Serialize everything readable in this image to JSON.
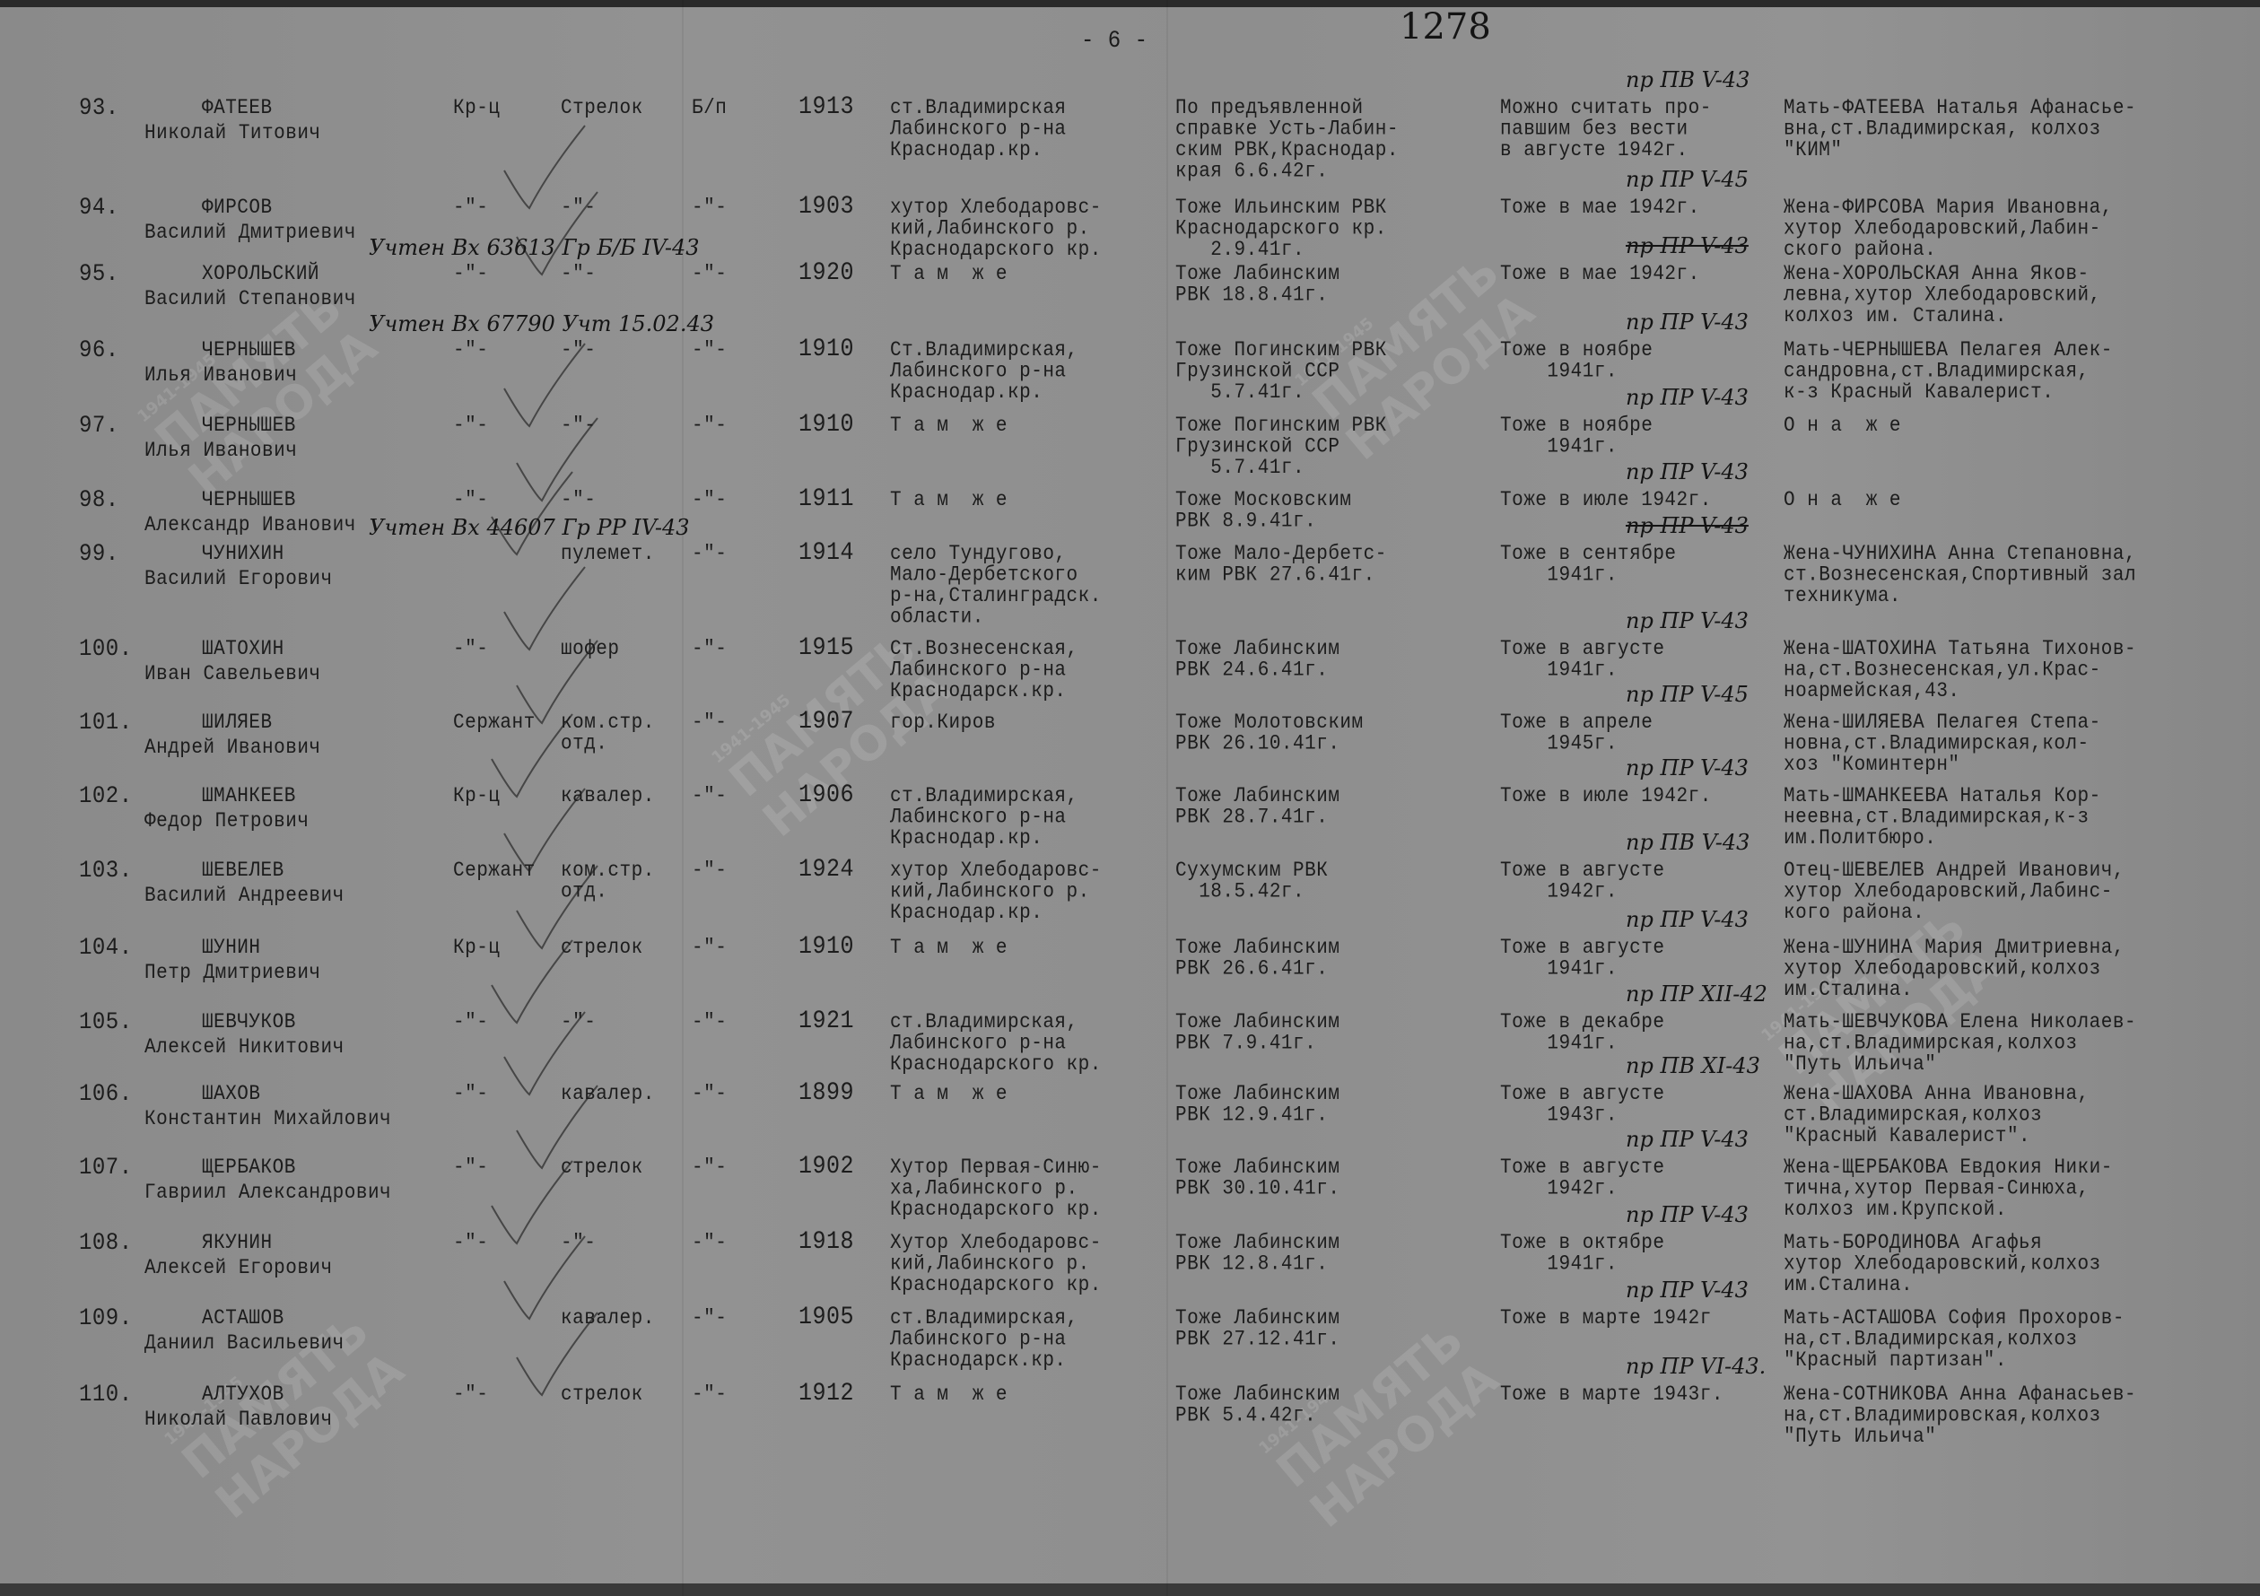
{
  "page_number": "- 6 -",
  "archive_number": "1278",
  "watermark": {
    "text": "ПАМЯТЬ\nНАРОДА",
    "years": "1941-1945"
  },
  "rows": [
    {
      "num": "93.",
      "surname": "ФАТЕЕВ",
      "name": "Николай Титович",
      "rank": "Кр-ц",
      "position": "Стрелок",
      "party": "Б/п",
      "year": "1913",
      "birthplace": "ст.Владимирская\nЛабинского р-на\nКраснодар.кр.",
      "drafted": "По предъявленной\nсправке Усть-Лабин-\nским РВК,Краснодар.\nкрая 6.6.42г.",
      "fate_note": "пр ПВ V-43",
      "fate": "Можно считать про-\nпавшим без вести\nв августе 1942г.",
      "relative": "Мать-ФАТЕЕВА Наталья Афанасье-\nвна,ст.Владимирская, колхоз\n\"КИМ\"",
      "margin_note": ""
    },
    {
      "num": "94.",
      "surname": "ФИРСОВ",
      "name": "Василий Дмитриевич",
      "rank": "-\"-",
      "position": "-\"-",
      "party": "-\"-",
      "year": "1903",
      "birthplace": "хутор Хлебодаровс-\nкий,Лабинского р.\nКраснодарского кр.",
      "drafted": "Тоже Ильинским РВК\nКраснодарского кр.\n   2.9.41г.",
      "fate_note": "пр ПР V-45",
      "fate": "Тоже в мае 1942г.",
      "relative": "Жена-ФИРСОВА Мария Ивановна,\nхутор Хлебодаровский,Лабин-\nского района.",
      "margin_note": ""
    },
    {
      "num": "95.",
      "surname": "ХОРОЛЬСКИЙ",
      "name": "Василий Степанович",
      "rank": "-\"-",
      "position": "-\"-",
      "party": "-\"-",
      "year": "1920",
      "birthplace": "Т а м  ж е",
      "drafted": "Тоже Лабинским\nРВК 18.8.41г.",
      "fate_note": "пр ПР V-43",
      "fate": "Тоже в мае 1942г.",
      "relative": "Жена-ХОРОЛЬСКАЯ Анна Яков-\nлевна,хутор Хлебодаровский,\nколхоз им. Сталина.",
      "margin_note": "Учтен Вх 63613 Гр Б/Б IV-43"
    },
    {
      "num": "96.",
      "surname": "ЧЕРНЫШЕВ",
      "name": "Илья Иванович",
      "rank": "-\"-",
      "position": "-\"-",
      "party": "-\"-",
      "year": "1910",
      "birthplace": "Ст.Владимирская,\nЛабинского р-на\nКраснодар.кр.",
      "drafted": "Тоже Погинским РВК\nГрузинской ССР\n   5.7.41г.",
      "fate_note": "пр ПР V-43",
      "fate": "Тоже в ноябре\n    1941г.",
      "relative": "Мать-ЧЕРНЫШЕВА Пелагея Алек-\nсандровна,ст.Владимирская,\nк-з Красный Кавалерист.",
      "margin_note": "Учтен Вх 67790 Учт 15.02.43"
    },
    {
      "num": "97.",
      "surname": "ЧЕРНЫШЕВ",
      "name": "Илья Иванович",
      "rank": "-\"-",
      "position": "-\"-",
      "party": "-\"-",
      "year": "1910",
      "birthplace": "Т а м  ж е",
      "drafted": "Тоже Погинским РВК\nГрузинской ССР\n   5.7.41г.",
      "fate_note": "пр ПР V-43",
      "fate": "Тоже в ноябре\n    1941г.",
      "relative": "О н а  ж е",
      "margin_note": ""
    },
    {
      "num": "98.",
      "surname": "ЧЕРНЫШЕВ",
      "name": "Александр Иванович",
      "rank": "-\"-",
      "position": "-\"-",
      "party": "-\"-",
      "year": "1911",
      "birthplace": "Т а м  ж е",
      "drafted": "Тоже Московским\nРВК 8.9.41г.",
      "fate_note": "пр ПР V-43",
      "fate": "Тоже в июле 1942г.",
      "relative": "О н а  ж е",
      "margin_note": ""
    },
    {
      "num": "99.",
      "surname": "ЧУНИХИН",
      "name": "Василий Егорович",
      "rank": "",
      "position": "пулемет.",
      "party": "-\"-",
      "year": "1914",
      "birthplace": "село Тундугово,\nМало-Дербетского\nр-на,Сталинградск.\nобласти.",
      "drafted": "Тоже Мало-Дербетс-\nким РВК 27.6.41г.",
      "fate_note": "пр ПР V-43",
      "fate": "Тоже в сентябре\n    1941г.",
      "relative": "Жена-ЧУНИХИНА Анна Степановна,\nст.Вознесенская,Спортивный зал\nтехникума.",
      "margin_note": "Учтен Вх 44607 Гр РР IV-43"
    },
    {
      "num": "100.",
      "surname": "ШАТОХИН",
      "name": "Иван Савельевич",
      "rank": "-\"-",
      "position": "шофер",
      "party": "-\"-",
      "year": "1915",
      "birthplace": "Ст.Вознесенская,\nЛабинского р-на\nКраснодарск.кр.",
      "drafted": "Тоже Лабинским\nРВК 24.6.41г.",
      "fate_note": "пр ПР V-43",
      "fate": "Тоже в августе\n    1941г.",
      "relative": "Жена-ШАТОХИНА Татьяна Тихонов-\nна,ст.Вознесенская,ул.Крас-\nноармейская,43.",
      "margin_note": ""
    },
    {
      "num": "101.",
      "surname": "ШИЛЯЕВ",
      "name": "Андрей Иванович",
      "rank": "Сержант",
      "position": "ком.стр.\nотд.",
      "party": "-\"-",
      "year": "1907",
      "birthplace": "гор.Киров",
      "drafted": "Тоже Молотовским\nРВК 26.10.41г.",
      "fate_note": "пр ПР V-45",
      "fate": "Тоже в апреле\n    1945г.",
      "relative": "Жена-ШИЛЯЕВА Пелагея Степа-\nновна,ст.Владимирская,кол-\nхоз \"Коминтерн\"",
      "margin_note": ""
    },
    {
      "num": "102.",
      "surname": "ШМАНКЕЕВ",
      "name": "Федор Петрович",
      "rank": "Кр-ц",
      "position": "кавалер.",
      "party": "-\"-",
      "year": "1906",
      "birthplace": "ст.Владимирская,\nЛабинского р-на\nКраснодар.кр.",
      "drafted": "Тоже Лабинским\nРВК 28.7.41г.",
      "fate_note": "пр ПР V-43",
      "fate": "Тоже в июле 1942г.",
      "relative": "Мать-ШМАНКЕЕВА Наталья Кор-\nнеевна,ст.Владимирская,к-з\nим.Политбюро.",
      "margin_note": ""
    },
    {
      "num": "103.",
      "surname": "ШЕВЕЛЕВ",
      "name": "Василий Андреевич",
      "rank": "Сержант",
      "position": "ком.стр.\nотд.",
      "party": "-\"-",
      "year": "1924",
      "birthplace": "хутор Хлебодаровс-\nкий,Лабинского р.\nКраснодар.кр.",
      "drafted": "Сухумским РВК\n  18.5.42г.",
      "fate_note": "пр ПВ V-43",
      "fate": "Тоже в августе\n    1942г.",
      "relative": "Отец-ШЕВЕЛЕВ Андрей Иванович,\nхутор Хлебодаровский,Лабинс-\nкого района.",
      "margin_note": ""
    },
    {
      "num": "104.",
      "surname": "ШУНИН",
      "name": "Петр Дмитриевич",
      "rank": "Кр-ц",
      "position": "стрелок",
      "party": "-\"-",
      "year": "1910",
      "birthplace": "Т а м  ж е",
      "drafted": "Тоже Лабинским\nРВК 26.6.41г.",
      "fate_note": "пр ПР V-43",
      "fate": "Тоже в августе\n    1941г.",
      "relative": "Жена-ШУНИНА Мария Дмитриевна,\nхутор Хлебодаровский,колхоз\nим.Сталина.",
      "margin_note": ""
    },
    {
      "num": "105.",
      "surname": "ШЕВЧУКОВ",
      "name": "Алексей Никитович",
      "rank": "-\"-",
      "position": "-\"-",
      "party": "-\"-",
      "year": "1921",
      "birthplace": "ст.Владимирская,\nЛабинского р-на\nКраснодарского кр.",
      "drafted": "Тоже Лабинским\nРВК 7.9.41г.",
      "fate_note": "пр ПР XII-42",
      "fate": "Тоже в декабре\n    1941г.",
      "relative": "Мать-ШЕВЧУКОВА Елена Николаев-\nна,ст.Владимирская,колхоз\n\"Путь Ильича\"",
      "margin_note": ""
    },
    {
      "num": "106.",
      "surname": "ШАХОВ",
      "name": "Константин Михайлович",
      "rank": "-\"-",
      "position": "кавалер.",
      "party": "-\"-",
      "year": "1899",
      "birthplace": "Т а м  ж е",
      "drafted": "Тоже Лабинским\nРВК 12.9.41г.",
      "fate_note": "пр ПВ XI-43",
      "fate": "Тоже в августе\n    1943г.",
      "relative": "Жена-ШАХОВА Анна Ивановна,\nст.Владимирская,колхоз\n\"Красный Кавалерист\".",
      "margin_note": ""
    },
    {
      "num": "107.",
      "surname": "ЩЕРБАКОВ",
      "name": "Гавриил Александрович",
      "rank": "-\"-",
      "position": "стрелок",
      "party": "-\"-",
      "year": "1902",
      "birthplace": "Хутор Первая-Синю-\nха,Лабинского р.\nКраснодарского кр.",
      "drafted": "Тоже Лабинским\nРВК 30.10.41г.",
      "fate_note": "пр ПР V-43",
      "fate": "Тоже в августе\n    1942г.",
      "relative": "Жена-ЩЕРБАКОВА Евдокия Ники-\nтична,хутор Первая-Синюха,\nколхоз им.Крупской.",
      "margin_note": ""
    },
    {
      "num": "108.",
      "surname": "ЯКУНИН",
      "name": "Алексей Егорович",
      "rank": "-\"-",
      "position": "-\"-",
      "party": "-\"-",
      "year": "1918",
      "birthplace": "Хутор Хлебодаровс-\nкий,Лабинского р.\nКраснодарского кр.",
      "drafted": "Тоже Лабинским\nРВК 12.8.41г.",
      "fate_note": "пр ПР V-43",
      "fate": "Тоже в октябре\n    1941г.",
      "relative": "Мать-БОРОДИНОВА Агафья\nхутор Хлебодаровский,колхоз\nим.Сталина.",
      "margin_note": ""
    },
    {
      "num": "109.",
      "surname": "АСТАШОВ",
      "name": "Даниил Васильевич",
      "rank": "",
      "position": "кавалер.",
      "party": "-\"-",
      "year": "1905",
      "birthplace": "ст.Владимирская,\nЛабинского р-на\nКраснодарск.кр.",
      "drafted": "Тоже Лабинским\nРВК 27.12.41г.",
      "fate_note": "пр ПР V-43",
      "fate": "Тоже в марте 1942г",
      "relative": "Мать-АСТАШОВА София Прохоров-\nна,ст.Владимирская,колхоз\n\"Красный партизан\".",
      "margin_note": ""
    },
    {
      "num": "110.",
      "surname": "АЛТУХОВ",
      "name": "Николай Павлович",
      "rank": "-\"-",
      "position": "стрелок",
      "party": "-\"-",
      "year": "1912",
      "birthplace": "Т а м  ж е",
      "drafted": "Тоже Лабинским\nРВК 5.4.42г.",
      "fate_note": "пр ПР VI-43.",
      "fate": "Тоже в марте 1943г.",
      "relative": "Жена-СОТНИКОВА Анна Афанасьев-\nна,ст.Владимировская,колхоз\n\"Путь Ильича\"",
      "margin_note": ""
    }
  ],
  "struck_notes": [
    "95",
    "99"
  ],
  "colors": {
    "paper": "#8d8d8d",
    "ink": "#1c1c1c"
  }
}
